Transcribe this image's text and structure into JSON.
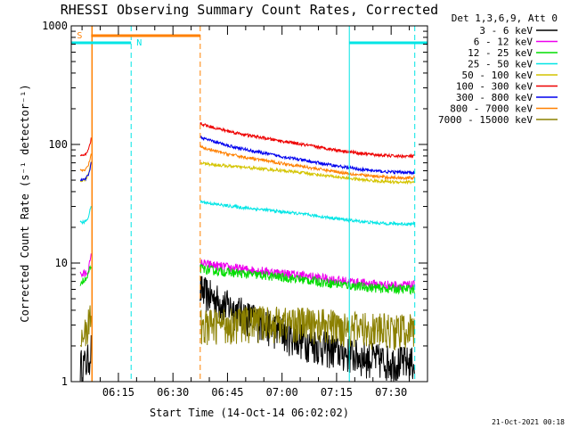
{
  "chart_data": {
    "type": "line",
    "title": "RHESSI Observing Summary Count Rates, Corrected",
    "xlabel": "Start Time (14-Oct-14 06:02:02)",
    "ylabel": "Corrected Count Rate (s⁻¹ detector⁻¹)",
    "y_scale": "log",
    "ylim": [
      1,
      1000
    ],
    "xlim": [
      "06:02:02",
      "07:40:00"
    ],
    "y_ticks": [
      "1",
      "10",
      "100",
      "1000"
    ],
    "x_ticks": [
      "06:15",
      "06:30",
      "06:45",
      "07:00",
      "07:15",
      "07:30"
    ],
    "legend_title": "Det 1,3,6,9, Att 0",
    "legend_position": "right-outside",
    "timestamp": "21-Oct-2021 00:18",
    "flags": [
      {
        "label": "S",
        "color": "#ff8000"
      },
      {
        "label": "N",
        "color": "#00e5e5"
      }
    ],
    "series": [
      {
        "name": "3 - 6 keV",
        "color": "#000000",
        "pre": 1.4,
        "start": 6.0,
        "end": 1.5
      },
      {
        "name": "6 - 12 keV",
        "color": "#ee00ee",
        "pre": 8.0,
        "start": 10.0,
        "end": 7.0
      },
      {
        "name": "12 - 25 keV",
        "color": "#00dd00",
        "pre": 7.0,
        "start": 9.0,
        "end": 6.5
      },
      {
        "name": "25 - 50 keV",
        "color": "#00e5e5",
        "pre": 22.0,
        "start": 33.0,
        "end": 23.0
      },
      {
        "name": "50 - 100 keV",
        "color": "#d4c400",
        "pre": 50.0,
        "start": 70.0,
        "end": 52.0
      },
      {
        "name": "100 - 300 keV",
        "color": "#ee0000",
        "pre": 80.0,
        "start": 150.0,
        "end": 85.0
      },
      {
        "name": "300 - 800 keV",
        "color": "#0000ee",
        "pre": 50.0,
        "start": 115.0,
        "end": 62.0
      },
      {
        "name": "800 - 7000 keV",
        "color": "#ff8000",
        "pre": 60.0,
        "start": 95.0,
        "end": 56.0
      },
      {
        "name": "7000 - 15000 keV",
        "color": "#8b8000",
        "pre": 2.7,
        "start": 3.0,
        "end": 3.0
      }
    ]
  }
}
